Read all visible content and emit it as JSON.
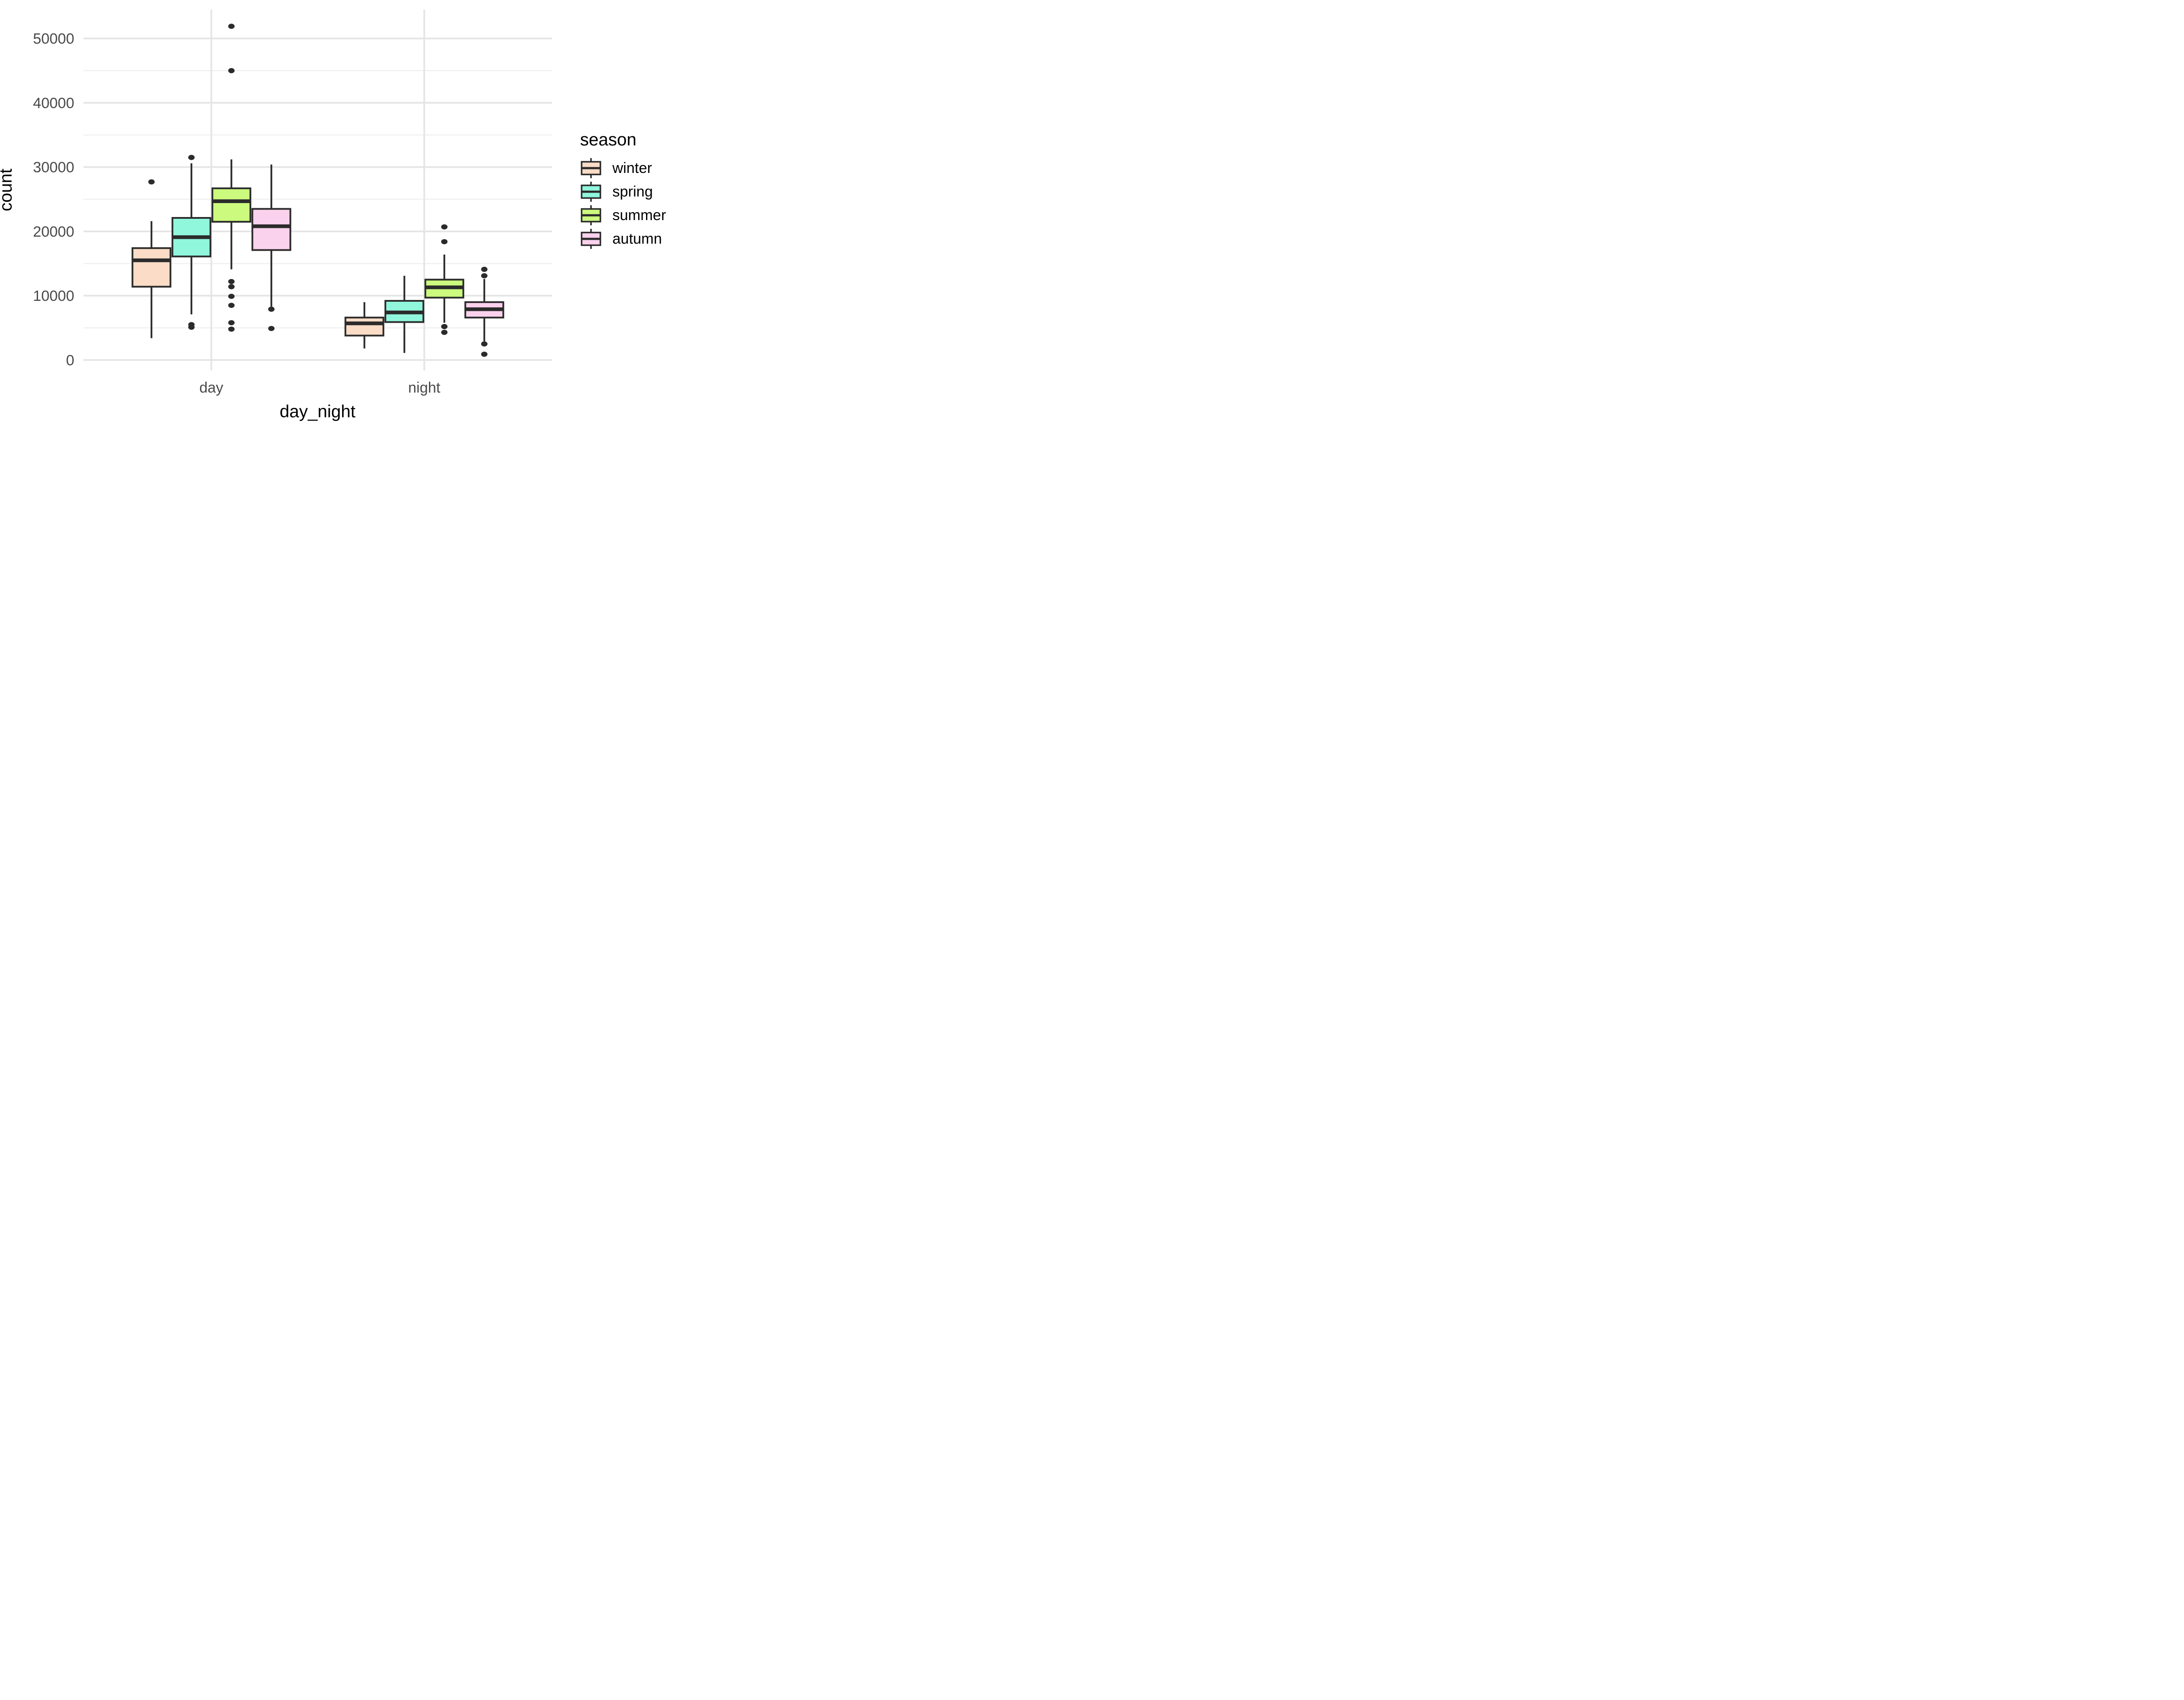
{
  "chart_data": {
    "type": "boxplot",
    "title": "",
    "xlabel": "day_night",
    "ylabel": "count",
    "categories": [
      "day",
      "night"
    ],
    "y_axis": {
      "major_ticks": [
        0,
        10000,
        20000,
        30000,
        40000,
        50000
      ],
      "minor_ticks": [
        5000,
        15000,
        25000,
        35000,
        45000
      ],
      "range": [
        -1650,
        54450
      ],
      "grid": "on"
    },
    "legend": {
      "title": "season",
      "position": "right",
      "entries": [
        "winter",
        "spring",
        "summer",
        "autumn"
      ]
    },
    "seasons": [
      {
        "name": "winter",
        "fill": "#FBDCC6"
      },
      {
        "name": "spring",
        "fill": "#90F6DC"
      },
      {
        "name": "summer",
        "fill": "#CBFA7E"
      },
      {
        "name": "autumn",
        "fill": "#FBD2EE"
      }
    ],
    "boxes": [
      {
        "category": "day",
        "season": "winter",
        "low": 3400,
        "q1": 11400,
        "median": 15500,
        "q3": 17400,
        "high": 21600,
        "outliers": [
          27700
        ]
      },
      {
        "category": "day",
        "season": "spring",
        "low": 7100,
        "q1": 16100,
        "median": 19100,
        "q3": 22100,
        "high": 30600,
        "outliers": [
          31500,
          5500,
          5100
        ]
      },
      {
        "category": "day",
        "season": "summer",
        "low": 14100,
        "q1": 21500,
        "median": 24700,
        "q3": 26700,
        "high": 31200,
        "outliers": [
          51900,
          45000,
          12200,
          11400,
          9900,
          8500,
          5800,
          4800
        ]
      },
      {
        "category": "day",
        "season": "autumn",
        "low": 8300,
        "q1": 17100,
        "median": 20800,
        "q3": 23500,
        "high": 30400,
        "outliers": [
          7900,
          4900
        ]
      },
      {
        "category": "night",
        "season": "winter",
        "low": 1800,
        "q1": 3800,
        "median": 5700,
        "q3": 6600,
        "high": 9000,
        "outliers": []
      },
      {
        "category": "night",
        "season": "spring",
        "low": 1100,
        "q1": 5900,
        "median": 7400,
        "q3": 9200,
        "high": 13100,
        "outliers": []
      },
      {
        "category": "night",
        "season": "summer",
        "low": 5800,
        "q1": 9700,
        "median": 11300,
        "q3": 12500,
        "high": 16400,
        "outliers": [
          20700,
          18400,
          5200,
          4300
        ]
      },
      {
        "category": "night",
        "season": "autumn",
        "low": 2900,
        "q1": 6600,
        "median": 7900,
        "q3": 9000,
        "high": 12600,
        "outliers": [
          14100,
          13100,
          2500,
          900
        ]
      }
    ],
    "colors": {
      "box_stroke": "#2B2B2B",
      "grid_major": "#E5E5E5",
      "grid_minor": "#EFEFEF",
      "tick_text": "#4A4A4A",
      "title_text": "#000000",
      "panel_bg": "#FFFFFF"
    }
  }
}
